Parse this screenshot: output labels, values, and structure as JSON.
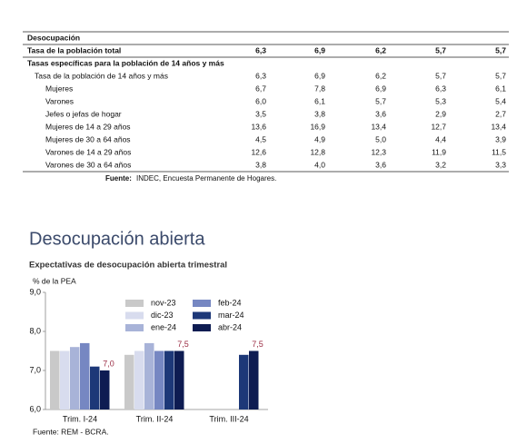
{
  "table": {
    "rows": [
      [
        "Desocupación"
      ],
      [
        "Tasa de la población total",
        "6,3",
        "6,9",
        "6,2",
        "5,7",
        "5,7"
      ],
      [
        "Tasas específicas para la población de 14 años y más"
      ],
      [
        "Tasa de la población de 14 años y más",
        "6,3",
        "6,9",
        "6,2",
        "5,7",
        "5,7"
      ],
      [
        "Mujeres",
        "6,7",
        "7,8",
        "6,9",
        "6,3",
        "6,1"
      ],
      [
        "Varones",
        "6,0",
        "6,1",
        "5,7",
        "5,3",
        "5,4"
      ],
      [
        "Jefes o jefas de hogar",
        "3,5",
        "3,8",
        "3,6",
        "2,9",
        "2,7"
      ],
      [
        "Mujeres de 14 a 29 años",
        "13,6",
        "16,9",
        "13,4",
        "12,7",
        "13,4"
      ],
      [
        "Mujeres de 30 a 64 años",
        "4,5",
        "4,9",
        "5,0",
        "4,4",
        "3,9"
      ],
      [
        "Varones de 14 a 29 años",
        "12,6",
        "12,8",
        "12,3",
        "11,9",
        "11,5"
      ],
      [
        "Varones de 30 a 64 años",
        "3,8",
        "4,0",
        "3,6",
        "3,2",
        "3,3"
      ]
    ],
    "source_label": "Fuente:",
    "source_text": "INDEC, Encuesta Permanente de Hogares."
  },
  "section_title": "Desocupación abierta",
  "chart_data": {
    "type": "bar",
    "title": "Expectativas de desocupación abierta trimestral",
    "y_label": "% de la PEA",
    "source": "Fuente: REM - BCRA.",
    "categories": [
      "Trim. I-24",
      "Trim. II-24",
      "Trim. III-24"
    ],
    "series": [
      {
        "name": "nov-23",
        "color": "#c9c9c9",
        "values": [
          7.5,
          7.4,
          null
        ]
      },
      {
        "name": "dic-23",
        "color": "#d8dcee",
        "values": [
          7.5,
          7.5,
          null
        ]
      },
      {
        "name": "ene-24",
        "color": "#a8b3d8",
        "values": [
          7.6,
          7.7,
          null
        ]
      },
      {
        "name": "feb-24",
        "color": "#7687c2",
        "values": [
          7.7,
          7.5,
          null
        ]
      },
      {
        "name": "mar-24",
        "color": "#1d3878",
        "values": [
          7.1,
          7.5,
          7.4
        ]
      },
      {
        "name": "abr-24",
        "color": "#0e1c52",
        "values": [
          7.0,
          7.5,
          7.5
        ],
        "value_labels": [
          "7,0",
          "7,5",
          "7,5"
        ]
      }
    ],
    "ylim": [
      6.0,
      9.0
    ],
    "yticks": [
      {
        "value": 6,
        "label": "6,0"
      },
      {
        "value": 7,
        "label": "7,0"
      },
      {
        "value": 8,
        "label": "8,0"
      },
      {
        "value": 9,
        "label": "9,0"
      }
    ],
    "value_label_color": "#9b2d44"
  }
}
